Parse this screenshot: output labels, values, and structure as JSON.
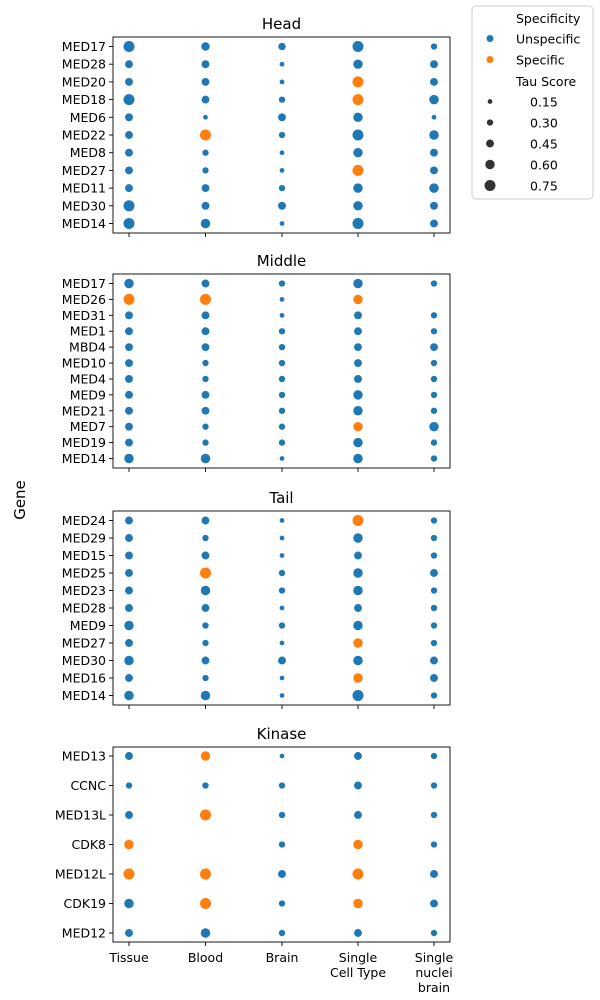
{
  "figure": {
    "ylabel": "Gene"
  },
  "legend": {
    "hue_title": "Specificity",
    "hue_entries": [
      {
        "label": "Unspecific",
        "color": "#1f77b4"
      },
      {
        "label": "Specific",
        "color": "#ff7f0e"
      }
    ],
    "size_title": "Tau Score",
    "size_entries": [
      "0.15",
      "0.30",
      "0.45",
      "0.60",
      "0.75"
    ]
  },
  "chart_data": [
    {
      "type": "scatter",
      "title": "Head",
      "xcategories": [
        "Tissue",
        "Blood",
        "Brain",
        "Single\nCell Type",
        "Single\nnuclei\nbrain"
      ],
      "genes": [
        "MED17",
        "MED28",
        "MED20",
        "MED18",
        "MED6",
        "MED22",
        "MED8",
        "MED27",
        "MED11",
        "MED30",
        "MED14"
      ],
      "tau": [
        [
          0.75,
          0.5,
          0.4,
          0.75,
          0.3
        ],
        [
          0.45,
          0.45,
          0.15,
          0.6,
          0.45
        ],
        [
          0.45,
          0.45,
          0.15,
          0.75,
          0.45
        ],
        [
          0.75,
          0.45,
          0.3,
          0.75,
          0.6
        ],
        [
          0.45,
          0.15,
          0.45,
          0.6,
          0.15
        ],
        [
          0.45,
          0.75,
          0.3,
          0.75,
          0.6
        ],
        [
          0.45,
          0.3,
          0.15,
          0.6,
          0.45
        ],
        [
          0.45,
          0.3,
          0.15,
          0.75,
          0.45
        ],
        [
          0.45,
          0.45,
          0.3,
          0.6,
          0.6
        ],
        [
          0.75,
          0.45,
          0.45,
          0.6,
          0.45
        ],
        [
          0.75,
          0.6,
          0.15,
          0.75,
          0.45
        ]
      ],
      "specific": [
        [
          0,
          0,
          0,
          0,
          0
        ],
        [
          0,
          0,
          0,
          0,
          0
        ],
        [
          0,
          0,
          0,
          1,
          0
        ],
        [
          0,
          0,
          0,
          1,
          0
        ],
        [
          0,
          0,
          0,
          0,
          0
        ],
        [
          0,
          1,
          0,
          0,
          0
        ],
        [
          0,
          0,
          0,
          0,
          0
        ],
        [
          0,
          0,
          0,
          1,
          0
        ],
        [
          0,
          0,
          0,
          0,
          0
        ],
        [
          0,
          0,
          0,
          0,
          0
        ],
        [
          0,
          0,
          0,
          0,
          0
        ]
      ]
    },
    {
      "type": "scatter",
      "title": "Middle",
      "xcategories": [
        "Tissue",
        "Blood",
        "Brain",
        "Single\nCell Type",
        "Single\nnuclei\nbrain"
      ],
      "genes": [
        "MED17",
        "MED26",
        "MED31",
        "MED1",
        "MBD4",
        "MED10",
        "MED4",
        "MED9",
        "MED21",
        "MED7",
        "MED19",
        "MED14"
      ],
      "tau": [
        [
          0.6,
          0.45,
          0.3,
          0.6,
          0.3
        ],
        [
          0.75,
          0.75,
          0.15,
          0.6,
          null
        ],
        [
          0.45,
          0.45,
          0.15,
          0.45,
          0.3
        ],
        [
          0.45,
          0.45,
          0.3,
          0.45,
          0.3
        ],
        [
          0.45,
          0.45,
          0.3,
          0.45,
          0.45
        ],
        [
          0.45,
          0.3,
          0.3,
          0.45,
          0.3
        ],
        [
          0.45,
          0.3,
          0.3,
          0.45,
          0.3
        ],
        [
          0.45,
          0.45,
          0.3,
          0.6,
          0.3
        ],
        [
          0.45,
          0.45,
          0.3,
          0.6,
          0.3
        ],
        [
          0.45,
          0.3,
          0.3,
          0.6,
          0.6
        ],
        [
          0.45,
          0.3,
          0.3,
          0.6,
          0.3
        ],
        [
          0.6,
          0.6,
          0.15,
          0.6,
          0.3
        ]
      ],
      "specific": [
        [
          0,
          0,
          0,
          0,
          0
        ],
        [
          1,
          1,
          0,
          1,
          0
        ],
        [
          0,
          0,
          0,
          0,
          0
        ],
        [
          0,
          0,
          0,
          0,
          0
        ],
        [
          0,
          0,
          0,
          0,
          0
        ],
        [
          0,
          0,
          0,
          0,
          0
        ],
        [
          0,
          0,
          0,
          0,
          0
        ],
        [
          0,
          0,
          0,
          0,
          0
        ],
        [
          0,
          0,
          0,
          0,
          0
        ],
        [
          0,
          0,
          0,
          1,
          0
        ],
        [
          0,
          0,
          0,
          0,
          0
        ],
        [
          0,
          0,
          0,
          0,
          0
        ]
      ]
    },
    {
      "type": "scatter",
      "title": "Tail",
      "xcategories": [
        "Tissue",
        "Blood",
        "Brain",
        "Single\nCell Type",
        "Single\nnuclei\nbrain"
      ],
      "genes": [
        "MED24",
        "MED29",
        "MED15",
        "MED25",
        "MED23",
        "MED28",
        "MED9",
        "MED27",
        "MED30",
        "MED16",
        "MED14"
      ],
      "tau": [
        [
          0.45,
          0.45,
          0.15,
          0.75,
          0.3
        ],
        [
          0.45,
          0.3,
          0.15,
          0.6,
          0.3
        ],
        [
          0.45,
          0.45,
          0.15,
          0.45,
          0.3
        ],
        [
          0.45,
          0.75,
          0.3,
          0.6,
          0.45
        ],
        [
          0.45,
          0.6,
          0.3,
          0.6,
          0.3
        ],
        [
          0.45,
          0.45,
          0.15,
          0.45,
          0.3
        ],
        [
          0.6,
          0.3,
          0.3,
          0.6,
          0.3
        ],
        [
          0.45,
          0.3,
          0.15,
          0.6,
          0.3
        ],
        [
          0.6,
          0.45,
          0.45,
          0.6,
          0.45
        ],
        [
          0.45,
          0.3,
          0.15,
          0.6,
          0.45
        ],
        [
          0.6,
          0.6,
          0.15,
          0.75,
          0.3
        ]
      ],
      "specific": [
        [
          0,
          0,
          0,
          1,
          0
        ],
        [
          0,
          0,
          0,
          0,
          0
        ],
        [
          0,
          0,
          0,
          0,
          0
        ],
        [
          0,
          1,
          0,
          0,
          0
        ],
        [
          0,
          0,
          0,
          0,
          0
        ],
        [
          0,
          0,
          0,
          0,
          0
        ],
        [
          0,
          0,
          0,
          0,
          0
        ],
        [
          0,
          0,
          0,
          1,
          0
        ],
        [
          0,
          0,
          0,
          0,
          0
        ],
        [
          0,
          0,
          0,
          1,
          0
        ],
        [
          0,
          0,
          0,
          0,
          0
        ]
      ]
    },
    {
      "type": "scatter",
      "title": "Kinase",
      "xcategories": [
        "Tissue",
        "Blood",
        "Brain",
        "Single\nCell Type",
        "Single\nnuclei\nbrain"
      ],
      "genes": [
        "MED13",
        "CCNC",
        "MED13L",
        "CDK8",
        "MED12L",
        "CDK19",
        "MED12"
      ],
      "tau": [
        [
          0.45,
          0.6,
          0.15,
          0.45,
          0.3
        ],
        [
          0.3,
          0.3,
          0.3,
          0.45,
          0.3
        ],
        [
          0.45,
          0.75,
          0.3,
          0.45,
          0.3
        ],
        [
          0.6,
          null,
          0.3,
          0.6,
          0.3
        ],
        [
          0.75,
          0.75,
          0.45,
          0.75,
          0.45
        ],
        [
          0.6,
          0.75,
          0.3,
          0.6,
          0.45
        ],
        [
          0.45,
          0.6,
          0.3,
          0.45,
          0.3
        ]
      ],
      "specific": [
        [
          0,
          1,
          0,
          0,
          0
        ],
        [
          0,
          0,
          0,
          0,
          0
        ],
        [
          0,
          1,
          0,
          0,
          0
        ],
        [
          1,
          0,
          0,
          1,
          0
        ],
        [
          1,
          1,
          0,
          1,
          0
        ],
        [
          0,
          1,
          0,
          1,
          0
        ],
        [
          0,
          0,
          0,
          0,
          0
        ]
      ]
    }
  ]
}
